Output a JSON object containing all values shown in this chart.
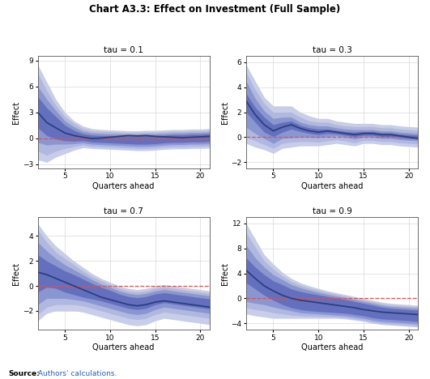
{
  "title": "Chart A3.3: Effect on Investment (Full Sample)",
  "source_bold": "Source:",
  "source_text": " Authors' calculations.",
  "panels": [
    {
      "label": "tau = 0.1",
      "ylim": [
        -3.5,
        9.5
      ],
      "yticks": [
        -3,
        0,
        3,
        6,
        9
      ],
      "mean": [
        3.0,
        1.8,
        1.2,
        0.6,
        0.3,
        0.1,
        -0.05,
        0.0,
        0.1,
        0.2,
        0.3,
        0.25,
        0.3,
        0.2,
        0.15,
        0.1,
        0.05,
        0.1,
        0.15,
        0.2
      ],
      "ci_bands": [
        {
          "upper": [
            8.5,
            6.5,
            4.5,
            3.0,
            2.0,
            1.4,
            1.1,
            1.0,
            0.95,
            0.9,
            0.85,
            0.85,
            0.9,
            0.9,
            0.95,
            1.0,
            1.0,
            1.05,
            1.05,
            1.1
          ],
          "lower": [
            -2.5,
            -2.8,
            -2.2,
            -1.8,
            -1.4,
            -1.1,
            -1.2,
            -1.25,
            -1.3,
            -1.35,
            -1.4,
            -1.45,
            -1.45,
            -1.4,
            -1.3,
            -1.25,
            -1.25,
            -1.2,
            -1.2,
            -1.15
          ]
        },
        {
          "upper": [
            7.5,
            5.5,
            3.8,
            2.5,
            1.7,
            1.1,
            0.85,
            0.8,
            0.75,
            0.7,
            0.65,
            0.65,
            0.7,
            0.7,
            0.75,
            0.8,
            0.8,
            0.85,
            0.85,
            0.9
          ],
          "lower": [
            -1.5,
            -2.0,
            -1.5,
            -1.2,
            -1.0,
            -0.8,
            -0.95,
            -1.0,
            -1.05,
            -1.1,
            -1.15,
            -1.2,
            -1.2,
            -1.15,
            -1.05,
            -1.0,
            -1.0,
            -0.95,
            -0.95,
            -0.9
          ]
        },
        {
          "upper": [
            6.0,
            4.5,
            3.2,
            2.0,
            1.3,
            0.8,
            0.6,
            0.55,
            0.5,
            0.5,
            0.45,
            0.45,
            0.5,
            0.5,
            0.55,
            0.6,
            0.6,
            0.65,
            0.65,
            0.7
          ],
          "lower": [
            -0.5,
            -0.8,
            -0.7,
            -0.7,
            -0.65,
            -0.55,
            -0.7,
            -0.75,
            -0.8,
            -0.85,
            -0.9,
            -0.95,
            -0.95,
            -0.9,
            -0.8,
            -0.75,
            -0.75,
            -0.7,
            -0.7,
            -0.65
          ]
        },
        {
          "upper": [
            4.8,
            3.5,
            2.5,
            1.5,
            0.9,
            0.5,
            0.35,
            0.3,
            0.3,
            0.3,
            0.25,
            0.25,
            0.3,
            0.3,
            0.35,
            0.4,
            0.4,
            0.45,
            0.45,
            0.5
          ],
          "lower": [
            1.2,
            0.3,
            -0.1,
            -0.3,
            -0.35,
            -0.3,
            -0.45,
            -0.5,
            -0.55,
            -0.6,
            -0.65,
            -0.7,
            -0.7,
            -0.65,
            -0.55,
            -0.5,
            -0.5,
            -0.45,
            -0.45,
            -0.4
          ]
        }
      ]
    },
    {
      "label": "tau = 0.3",
      "ylim": [
        -2.5,
        6.5
      ],
      "yticks": [
        -2,
        0,
        2,
        4,
        6
      ],
      "mean": [
        2.9,
        1.8,
        1.0,
        0.5,
        0.8,
        1.0,
        0.7,
        0.5,
        0.4,
        0.5,
        0.4,
        0.3,
        0.2,
        0.3,
        0.3,
        0.2,
        0.2,
        0.1,
        0.0,
        -0.1
      ],
      "ci_bands": [
        {
          "upper": [
            5.8,
            4.5,
            3.2,
            2.5,
            2.5,
            2.5,
            2.0,
            1.7,
            1.5,
            1.5,
            1.3,
            1.2,
            1.1,
            1.1,
            1.1,
            1.0,
            1.0,
            0.9,
            0.85,
            0.8
          ],
          "lower": [
            -0.5,
            -0.8,
            -1.0,
            -1.3,
            -0.9,
            -0.8,
            -0.7,
            -0.7,
            -0.7,
            -0.6,
            -0.5,
            -0.6,
            -0.7,
            -0.5,
            -0.5,
            -0.6,
            -0.6,
            -0.7,
            -0.75,
            -0.8
          ]
        },
        {
          "upper": [
            5.2,
            3.8,
            2.7,
            2.0,
            2.0,
            2.0,
            1.6,
            1.3,
            1.2,
            1.2,
            1.0,
            0.9,
            0.85,
            0.85,
            0.85,
            0.75,
            0.75,
            0.65,
            0.6,
            0.55
          ],
          "lower": [
            0.0,
            -0.3,
            -0.6,
            -0.9,
            -0.5,
            -0.4,
            -0.35,
            -0.35,
            -0.4,
            -0.3,
            -0.2,
            -0.3,
            -0.45,
            -0.25,
            -0.25,
            -0.35,
            -0.35,
            -0.45,
            -0.5,
            -0.55
          ]
        },
        {
          "upper": [
            4.5,
            3.1,
            2.1,
            1.5,
            1.6,
            1.6,
            1.2,
            1.0,
            0.9,
            0.9,
            0.75,
            0.65,
            0.6,
            0.6,
            0.6,
            0.5,
            0.5,
            0.4,
            0.35,
            0.3
          ],
          "lower": [
            0.8,
            0.3,
            -0.1,
            -0.5,
            -0.1,
            -0.05,
            0.0,
            0.0,
            -0.05,
            0.05,
            0.1,
            0.0,
            -0.15,
            0.0,
            0.0,
            -0.1,
            -0.1,
            -0.2,
            -0.25,
            -0.3
          ]
        },
        {
          "upper": [
            3.5,
            2.4,
            1.6,
            1.0,
            1.2,
            1.3,
            0.95,
            0.75,
            0.65,
            0.65,
            0.55,
            0.45,
            0.4,
            0.45,
            0.45,
            0.35,
            0.35,
            0.25,
            0.2,
            0.15
          ],
          "lower": [
            2.0,
            1.2,
            0.4,
            0.05,
            0.4,
            0.65,
            0.45,
            0.3,
            0.2,
            0.3,
            0.25,
            0.15,
            0.05,
            0.15,
            0.15,
            0.05,
            0.05,
            -0.05,
            -0.1,
            -0.15
          ]
        }
      ]
    },
    {
      "label": "tau = 0.7",
      "ylim": [
        -3.5,
        5.5
      ],
      "yticks": [
        -2,
        0,
        2,
        4
      ],
      "mean": [
        1.1,
        0.9,
        0.6,
        0.3,
        0.0,
        -0.3,
        -0.6,
        -0.9,
        -1.1,
        -1.3,
        -1.5,
        -1.6,
        -1.5,
        -1.3,
        -1.2,
        -1.3,
        -1.4,
        -1.5,
        -1.6,
        -1.7
      ],
      "ci_bands": [
        {
          "upper": [
            5.0,
            4.0,
            3.2,
            2.6,
            2.0,
            1.5,
            1.0,
            0.6,
            0.3,
            0.0,
            -0.2,
            -0.3,
            -0.2,
            0.0,
            0.1,
            0.0,
            -0.1,
            -0.2,
            -0.3,
            -0.4
          ],
          "lower": [
            -2.8,
            -2.2,
            -2.0,
            -2.0,
            -2.0,
            -2.1,
            -2.3,
            -2.5,
            -2.7,
            -2.9,
            -3.1,
            -3.2,
            -3.1,
            -2.8,
            -2.6,
            -2.7,
            -2.8,
            -2.9,
            -3.0,
            -3.1
          ]
        },
        {
          "upper": [
            4.5,
            3.5,
            2.7,
            2.2,
            1.7,
            1.2,
            0.75,
            0.4,
            0.1,
            -0.2,
            -0.4,
            -0.5,
            -0.4,
            -0.2,
            -0.1,
            -0.2,
            -0.3,
            -0.4,
            -0.5,
            -0.6
          ],
          "lower": [
            -2.3,
            -1.7,
            -1.5,
            -1.5,
            -1.5,
            -1.6,
            -1.8,
            -2.0,
            -2.2,
            -2.4,
            -2.6,
            -2.7,
            -2.6,
            -2.3,
            -2.1,
            -2.2,
            -2.3,
            -2.4,
            -2.5,
            -2.6
          ]
        },
        {
          "upper": [
            3.5,
            2.8,
            2.2,
            1.7,
            1.3,
            0.9,
            0.5,
            0.15,
            -0.1,
            -0.4,
            -0.6,
            -0.7,
            -0.6,
            -0.4,
            -0.3,
            -0.4,
            -0.5,
            -0.6,
            -0.7,
            -0.8
          ],
          "lower": [
            -1.5,
            -1.0,
            -1.0,
            -1.0,
            -1.1,
            -1.2,
            -1.4,
            -1.6,
            -1.8,
            -2.0,
            -2.2,
            -2.3,
            -2.2,
            -1.9,
            -1.7,
            -1.8,
            -1.9,
            -2.0,
            -2.1,
            -2.2
          ]
        },
        {
          "upper": [
            2.5,
            2.0,
            1.6,
            1.2,
            0.9,
            0.55,
            0.2,
            -0.1,
            -0.35,
            -0.65,
            -0.85,
            -0.95,
            -0.85,
            -0.65,
            -0.55,
            -0.65,
            -0.75,
            -0.85,
            -0.95,
            -1.05
          ],
          "lower": [
            -0.5,
            -0.1,
            -0.2,
            -0.5,
            -0.7,
            -0.9,
            -1.05,
            -1.2,
            -1.4,
            -1.6,
            -1.8,
            -1.9,
            -1.8,
            -1.5,
            -1.35,
            -1.45,
            -1.55,
            -1.65,
            -1.75,
            -1.85
          ]
        }
      ]
    },
    {
      "label": "tau = 0.9",
      "ylim": [
        -5.0,
        13.0
      ],
      "yticks": [
        -4,
        0,
        4,
        8,
        12
      ],
      "mean": [
        4.5,
        3.2,
        2.0,
        1.2,
        0.5,
        0.0,
        -0.3,
        -0.5,
        -0.7,
        -0.9,
        -1.1,
        -1.3,
        -1.5,
        -1.8,
        -2.0,
        -2.2,
        -2.3,
        -2.4,
        -2.5,
        -2.6
      ],
      "ci_bands": [
        {
          "upper": [
            12.0,
            9.5,
            7.0,
            5.5,
            4.2,
            3.2,
            2.5,
            2.0,
            1.6,
            1.2,
            0.9,
            0.6,
            0.3,
            0.0,
            -0.3,
            -0.6,
            -0.8,
            -0.9,
            -1.0,
            -1.1
          ],
          "lower": [
            -2.5,
            -2.8,
            -3.0,
            -3.2,
            -3.2,
            -3.2,
            -3.2,
            -3.2,
            -3.2,
            -3.2,
            -3.2,
            -3.3,
            -3.5,
            -3.7,
            -4.0,
            -4.2,
            -4.3,
            -4.4,
            -4.5,
            -4.6
          ]
        },
        {
          "upper": [
            10.5,
            8.2,
            6.0,
            4.7,
            3.6,
            2.7,
            2.1,
            1.65,
            1.3,
            0.95,
            0.65,
            0.35,
            0.05,
            -0.25,
            -0.55,
            -0.85,
            -1.05,
            -1.15,
            -1.25,
            -1.35
          ],
          "lower": [
            -1.5,
            -1.8,
            -2.0,
            -2.3,
            -2.5,
            -2.7,
            -2.8,
            -2.85,
            -2.9,
            -2.95,
            -3.0,
            -3.1,
            -3.3,
            -3.5,
            -3.8,
            -4.0,
            -4.1,
            -4.2,
            -4.3,
            -4.4
          ]
        },
        {
          "upper": [
            8.5,
            6.5,
            5.0,
            3.8,
            3.0,
            2.2,
            1.7,
            1.3,
            0.95,
            0.65,
            0.35,
            0.1,
            -0.2,
            -0.5,
            -0.8,
            -1.1,
            -1.3,
            -1.4,
            -1.5,
            -1.6
          ],
          "lower": [
            -0.5,
            -0.8,
            -1.0,
            -1.4,
            -1.7,
            -2.0,
            -2.3,
            -2.4,
            -2.5,
            -2.6,
            -2.7,
            -2.8,
            -3.0,
            -3.2,
            -3.5,
            -3.7,
            -3.8,
            -3.9,
            -4.0,
            -4.1
          ]
        },
        {
          "upper": [
            6.5,
            5.0,
            3.8,
            2.8,
            2.2,
            1.5,
            1.1,
            0.8,
            0.55,
            0.3,
            0.05,
            -0.2,
            -0.5,
            -0.8,
            -1.1,
            -1.4,
            -1.6,
            -1.7,
            -1.8,
            -1.9
          ],
          "lower": [
            2.5,
            1.5,
            0.5,
            -0.3,
            -1.0,
            -1.5,
            -1.8,
            -2.0,
            -2.1,
            -2.2,
            -2.3,
            -2.4,
            -2.6,
            -2.8,
            -3.1,
            -3.3,
            -3.4,
            -3.5,
            -3.6,
            -3.7
          ]
        }
      ]
    }
  ],
  "x_values": [
    2,
    3,
    4,
    5,
    6,
    7,
    8,
    9,
    10,
    11,
    12,
    13,
    14,
    15,
    16,
    17,
    18,
    19,
    20,
    21
  ],
  "xticks": [
    5,
    10,
    15,
    20
  ],
  "xlim": [
    2,
    21
  ],
  "xlabel": "Quarters ahead",
  "ylabel": "Effect",
  "mean_color": "#2b3f7e",
  "band_colors": [
    "#c8cde8",
    "#b0b8df",
    "#8a96d0",
    "#6470be"
  ],
  "band_alphas": [
    1.0,
    1.0,
    1.0,
    1.0
  ],
  "zero_line_color": "#e05050",
  "panel_bg": "white",
  "outer_bg": "white"
}
